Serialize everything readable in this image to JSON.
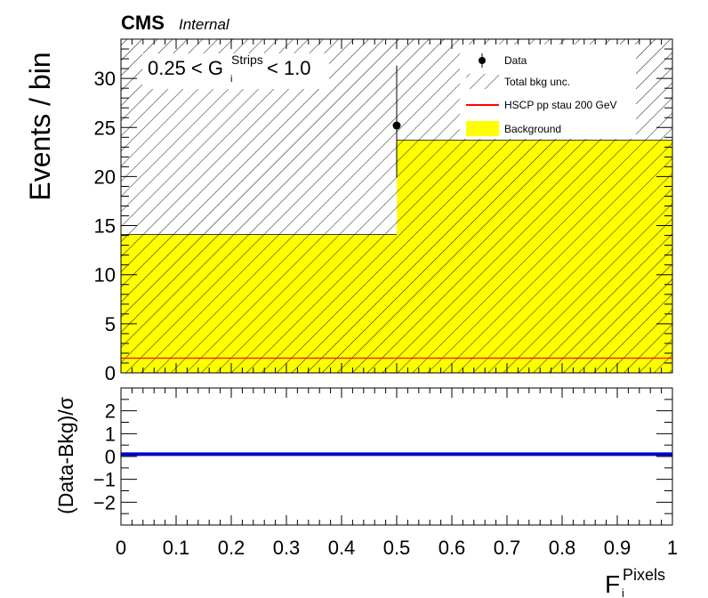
{
  "header": {
    "experiment": "CMS",
    "status": "Internal"
  },
  "chart_data": {
    "type": "bar",
    "top_panel": {
      "ylabel": "Events / bin",
      "ylim": [
        0,
        34
      ],
      "yticks": [
        0,
        5,
        10,
        15,
        20,
        25,
        30
      ],
      "selection": {
        "prefix": "0.25 < G",
        "sup": "Strips",
        "sub": "i",
        "suffix": " < 1.0"
      },
      "background": {
        "x": [
          0,
          0.5
        ],
        "values": [
          14.1,
          23.7
        ]
      },
      "uncertainty_band": {
        "x": [
          0,
          0.5
        ],
        "low": [
          0,
          0
        ],
        "high": [
          34,
          34
        ]
      },
      "signal": {
        "x": [
          0,
          1
        ],
        "values": [
          1.5,
          1.5
        ]
      },
      "data": [
        {
          "x": 0.5,
          "y": 25.2,
          "yerr_low": 5.3,
          "yerr_high": 6.1
        }
      ],
      "legend": {
        "placement": "top-right",
        "entries": [
          {
            "label": "Data",
            "style": "marker"
          },
          {
            "label": "Total bkg unc.",
            "style": "hatch"
          },
          {
            "label": "HSCP pp stau 200 GeV",
            "style": "line",
            "color": "#ff0000"
          },
          {
            "label": "Background",
            "style": "fill",
            "color": "#ffff00"
          }
        ]
      }
    },
    "bottom_panel": {
      "ylabel": "(Data-Bkg)/σ",
      "ylim": [
        -3,
        3
      ],
      "yticks": [
        -2,
        -1,
        0,
        1,
        2
      ],
      "yticklabels": [
        "−2",
        "−1",
        "0",
        "1",
        "2"
      ],
      "line": {
        "x": [
          0,
          1
        ],
        "y": [
          0.1,
          0.1
        ],
        "color": "#0000cc"
      }
    },
    "xaxis": {
      "xlim": [
        0,
        1
      ],
      "ticks": [
        0,
        0.1,
        0.2,
        0.3,
        0.4,
        0.5,
        0.6,
        0.7,
        0.8,
        0.9,
        1
      ],
      "ticklabels": [
        "0",
        "0.1",
        "0.2",
        "0.3",
        "0.4",
        "0.5",
        "0.6",
        "0.7",
        "0.8",
        "0.9",
        "1"
      ],
      "label": {
        "base": "F",
        "sup": "Pixels",
        "sub": "i"
      }
    },
    "colors": {
      "background": "#ffff00",
      "signal": "#ff0000",
      "ratio": "#0000cc",
      "data": "#000000"
    }
  }
}
